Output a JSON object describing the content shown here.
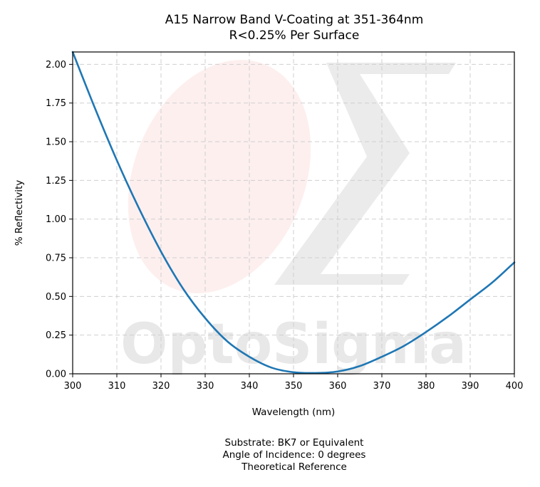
{
  "chart_data": {
    "type": "line",
    "title": "A15 Narrow Band V-Coating at 351-364nm",
    "subtitle": "R<0.25% Per Surface",
    "xlabel": "Wavelength (nm)",
    "ylabel": "% Reflectivity",
    "xlim": [
      300,
      400
    ],
    "ylim": [
      0,
      2.08
    ],
    "xticks": [
      "300",
      "310",
      "320",
      "330",
      "340",
      "350",
      "360",
      "370",
      "380",
      "390",
      "400"
    ],
    "yticks": [
      "0.00",
      "0.25",
      "0.50",
      "0.75",
      "1.00",
      "1.25",
      "1.50",
      "1.75",
      "2.00"
    ],
    "grid": true,
    "series": [
      {
        "color": "#1f77b4",
        "x": [
          300,
          305,
          310,
          315,
          320,
          325,
          330,
          335,
          340,
          345,
          350,
          355,
          360,
          365,
          370,
          375,
          380,
          385,
          390,
          395,
          400
        ],
        "y": [
          2.08,
          1.72,
          1.38,
          1.07,
          0.79,
          0.55,
          0.36,
          0.21,
          0.11,
          0.04,
          0.01,
          0.005,
          0.015,
          0.05,
          0.11,
          0.18,
          0.27,
          0.37,
          0.48,
          0.59,
          0.72
        ]
      }
    ],
    "watermark": "OptoSigma",
    "footer": [
      "Substrate: BK7 or Equivalent",
      "Angle of Incidence: 0 degrees",
      "Theoretical Reference"
    ]
  }
}
